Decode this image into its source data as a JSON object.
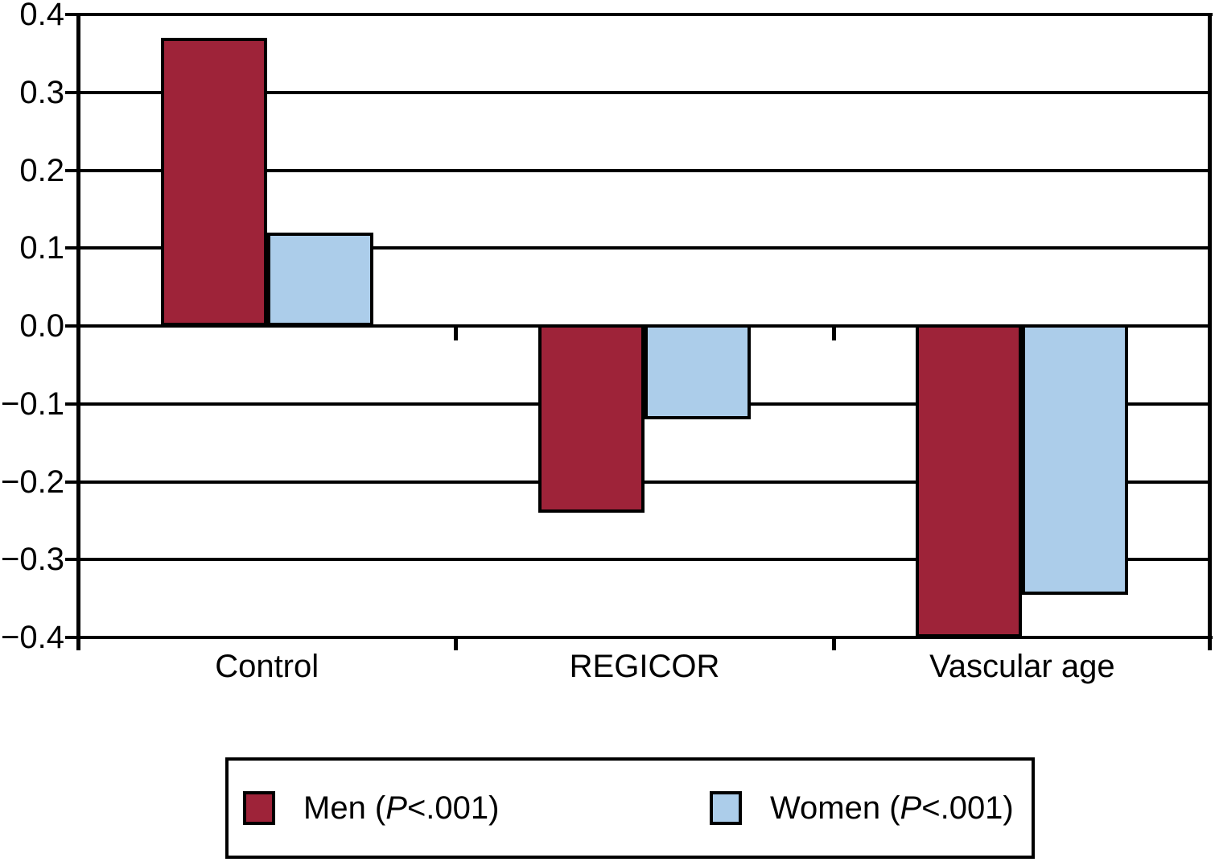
{
  "chart_data": {
    "type": "bar",
    "title": "",
    "xlabel": "",
    "ylabel": "",
    "categories": [
      "Control",
      "REGICOR",
      "Vascular age"
    ],
    "series": [
      {
        "name": "Men",
        "significance": "P<.001",
        "color": "#9E2339",
        "values": [
          0.37,
          -0.24,
          -0.4
        ]
      },
      {
        "name": "Women",
        "significance": "P<.001",
        "color": "#ACCDEA",
        "values": [
          0.12,
          -0.12,
          -0.345
        ]
      }
    ],
    "ylim": [
      -0.4,
      0.4
    ],
    "ytick_step": 0.1,
    "yticks": [
      "0.4",
      "0.3",
      "0.2",
      "0.1",
      "0.0",
      "−0.1",
      "−0.2",
      "−0.3",
      "−0.4"
    ],
    "grid": "horizontal-on",
    "zero_line": true,
    "legend_position": "bottom-boxed"
  },
  "legend": {
    "items": [
      {
        "prefix": "Men (",
        "p": "P",
        "suffix": "<.001)",
        "color": "#9E2339"
      },
      {
        "prefix": "Women (",
        "p": "P",
        "suffix": "<.001)",
        "color": "#ACCDEA"
      }
    ]
  },
  "colors": {
    "axis": "#000000",
    "background": "#FFFFFF",
    "men_bar": "#9E2339",
    "women_bar": "#ACCDEA"
  }
}
